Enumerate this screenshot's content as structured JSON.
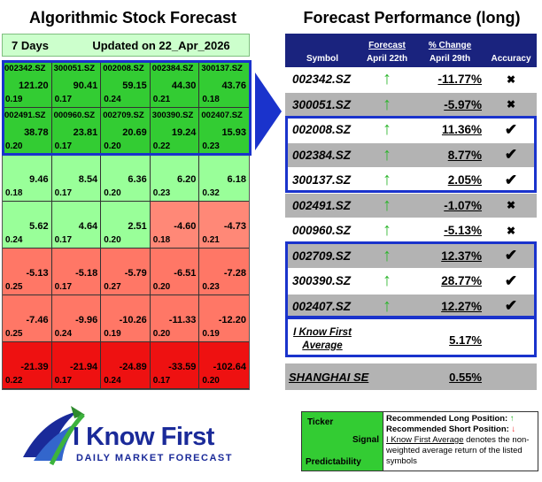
{
  "left": {
    "title": "Algorithmic Stock Forecast",
    "horizon": "7 Days",
    "updated": "Updated on 22_Apr_2026",
    "rows": [
      [
        {
          "symbol": "002342.SZ",
          "signal": "121.20",
          "predictability": "0.19"
        },
        {
          "symbol": "300051.SZ",
          "signal": "90.41",
          "predictability": "0.17"
        },
        {
          "symbol": "002008.SZ",
          "signal": "59.15",
          "predictability": "0.24"
        },
        {
          "symbol": "002384.SZ",
          "signal": "44.30",
          "predictability": "0.21"
        },
        {
          "symbol": "300137.SZ",
          "signal": "43.76",
          "predictability": "0.18"
        }
      ],
      [
        {
          "symbol": "002491.SZ",
          "signal": "38.78",
          "predictability": "0.20"
        },
        {
          "symbol": "000960.SZ",
          "signal": "23.81",
          "predictability": "0.17"
        },
        {
          "symbol": "002709.SZ",
          "signal": "20.69",
          "predictability": "0.20"
        },
        {
          "symbol": "300390.SZ",
          "signal": "19.24",
          "predictability": "0.22"
        },
        {
          "symbol": "002407.SZ",
          "signal": "15.93",
          "predictability": "0.23"
        }
      ],
      [
        {
          "symbol": "",
          "signal": "9.46",
          "predictability": "0.18"
        },
        {
          "symbol": "",
          "signal": "8.54",
          "predictability": "0.17"
        },
        {
          "symbol": "",
          "signal": "6.36",
          "predictability": "0.20"
        },
        {
          "symbol": "",
          "signal": "6.20",
          "predictability": "0.23"
        },
        {
          "symbol": "",
          "signal": "6.18",
          "predictability": "0.32"
        }
      ],
      [
        {
          "symbol": "",
          "signal": "5.62",
          "predictability": "0.24"
        },
        {
          "symbol": "",
          "signal": "4.64",
          "predictability": "0.17"
        },
        {
          "symbol": "",
          "signal": "2.51",
          "predictability": "0.20"
        },
        {
          "symbol": "",
          "signal": "-4.60",
          "predictability": "0.18"
        },
        {
          "symbol": "",
          "signal": "-4.73",
          "predictability": "0.21"
        }
      ],
      [
        {
          "symbol": "",
          "signal": "-5.13",
          "predictability": "0.25"
        },
        {
          "symbol": "",
          "signal": "-5.18",
          "predictability": "0.17"
        },
        {
          "symbol": "",
          "signal": "-5.79",
          "predictability": "0.27"
        },
        {
          "symbol": "",
          "signal": "-6.51",
          "predictability": "0.20"
        },
        {
          "symbol": "",
          "signal": "-7.28",
          "predictability": "0.23"
        }
      ],
      [
        {
          "symbol": "",
          "signal": "-7.46",
          "predictability": "0.25"
        },
        {
          "symbol": "",
          "signal": "-9.96",
          "predictability": "0.24"
        },
        {
          "symbol": "",
          "signal": "-10.26",
          "predictability": "0.19"
        },
        {
          "symbol": "",
          "signal": "-11.33",
          "predictability": "0.20"
        },
        {
          "symbol": "",
          "signal": "-12.20",
          "predictability": "0.19"
        }
      ],
      [
        {
          "symbol": "",
          "signal": "-21.39",
          "predictability": "0.22"
        },
        {
          "symbol": "",
          "signal": "-21.94",
          "predictability": "0.17"
        },
        {
          "symbol": "",
          "signal": "-24.89",
          "predictability": "0.24"
        },
        {
          "symbol": "",
          "signal": "-33.59",
          "predictability": "0.17"
        },
        {
          "symbol": "",
          "signal": "-102.64",
          "predictability": "0.20"
        }
      ]
    ],
    "row_colors": [
      "#33cc33",
      "#33cc33",
      "#99ff99",
      "mixed",
      "#ff7766",
      "#ff7766",
      "#ee1111"
    ]
  },
  "right": {
    "title": "Forecast Performance (long)",
    "headers": {
      "symbol": "Symbol",
      "forecast_top": "Forecast",
      "forecast_bottom": "April 22th",
      "change_top": "% Change",
      "change_bottom": "April 29th",
      "accuracy": "Accuracy"
    },
    "rows": [
      {
        "symbol": "002342.SZ",
        "forecast": "↑",
        "change": "-11.77%",
        "accuracy": "✖"
      },
      {
        "symbol": "300051.SZ",
        "forecast": "↑",
        "change": "-5.97%",
        "accuracy": "✖"
      },
      {
        "symbol": "002008.SZ",
        "forecast": "↑",
        "change": "11.36%",
        "accuracy": "✔"
      },
      {
        "symbol": "002384.SZ",
        "forecast": "↑",
        "change": "8.77%",
        "accuracy": "✔"
      },
      {
        "symbol": "300137.SZ",
        "forecast": "↑",
        "change": "2.05%",
        "accuracy": "✔"
      },
      {
        "symbol": "002491.SZ",
        "forecast": "↑",
        "change": "-1.07%",
        "accuracy": "✖"
      },
      {
        "symbol": "000960.SZ",
        "forecast": "↑",
        "change": "-5.13%",
        "accuracy": "✖"
      },
      {
        "symbol": "002709.SZ",
        "forecast": "↑",
        "change": "12.37%",
        "accuracy": "✔"
      },
      {
        "symbol": "300390.SZ",
        "forecast": "↑",
        "change": "28.77%",
        "accuracy": "✔"
      },
      {
        "symbol": "002407.SZ",
        "forecast": "↑",
        "change": "12.27%",
        "accuracy": "✔"
      }
    ],
    "average_label_1": "I Know First",
    "average_label_2": "Average",
    "average_value": "5.17%",
    "benchmark_label": "SHANGHAI SE",
    "benchmark_value": "0.55%"
  },
  "logo": {
    "name": "I Know First",
    "tagline": "DAILY MARKET FORECAST"
  },
  "legend": {
    "ticker": "Ticker",
    "signal": "Signal",
    "predictability": "Predictability",
    "long": "Recommended Long Position:",
    "short": "Recommended Short Position:",
    "avg_name": "I Know First Average",
    "avg_desc": " denotes the non-weighted average return of the listed symbols"
  },
  "colors": {
    "accent_blue": "#1a33cc",
    "header_navy": "#1a237e",
    "up_green": "#2bb52b",
    "down_red": "#ee2222"
  }
}
